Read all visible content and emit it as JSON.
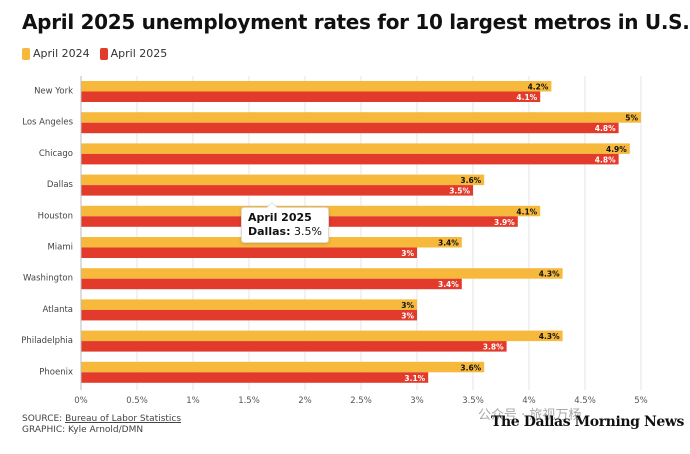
{
  "title": "April 2025 unemployment rates for 10 largest metros in U.S.",
  "legend": [
    {
      "label": "April 2024",
      "color": "#f6b93b"
    },
    {
      "label": "April 2025",
      "color": "#e23b2c"
    }
  ],
  "chart_data": {
    "type": "bar",
    "orientation": "horizontal",
    "title": "April 2025 unemployment rates for 10 largest metros in U.S.",
    "categories": [
      "New York",
      "Los Angeles",
      "Chicago",
      "Dallas",
      "Houston",
      "Miami",
      "Washington",
      "Atlanta",
      "Philadelphia",
      "Phoenix"
    ],
    "series": [
      {
        "name": "April 2024",
        "color": "#f6b93b",
        "values": [
          4.2,
          5,
          4.9,
          3.6,
          4.1,
          3.4,
          4.3,
          3,
          4.3,
          3.6
        ],
        "labels": [
          "4.2%",
          "5%",
          "4.9%",
          "3.6%",
          "4.1%",
          "3.4%",
          "4.3%",
          "3%",
          "4.3%",
          "3.6%"
        ]
      },
      {
        "name": "April 2025",
        "color": "#e23b2c",
        "values": [
          4.1,
          4.8,
          4.8,
          3.5,
          3.9,
          3,
          3.4,
          3,
          3.8,
          3.1
        ],
        "labels": [
          "4.1%",
          "4.8%",
          "4.8%",
          "3.5%",
          "3.9%",
          "3%",
          "3.4%",
          "3%",
          "3.8%",
          "3.1%"
        ]
      }
    ],
    "xlim": [
      0,
      5
    ],
    "xticks": [
      0,
      0.5,
      1,
      1.5,
      2,
      2.5,
      3,
      3.5,
      4,
      4.5,
      5
    ],
    "xtick_labels": [
      "0%",
      "0.5%",
      "1%",
      "1.5%",
      "2%",
      "2.5%",
      "3%",
      "3.5%",
      "4%",
      "4.5%",
      "5%"
    ],
    "grid": true,
    "legend_position": "top-left"
  },
  "tooltip": {
    "header": "April 2025",
    "key": "Dallas:",
    "value": "3.5%"
  },
  "source": {
    "prefix": "SOURCE: ",
    "link": "Bureau of Labor Statistics",
    "graphic": "GRAPHIC: Kyle Arnold/DMN"
  },
  "watermark": "公众号 · 旅视万杨",
  "masthead": "The Dallas Morning News"
}
